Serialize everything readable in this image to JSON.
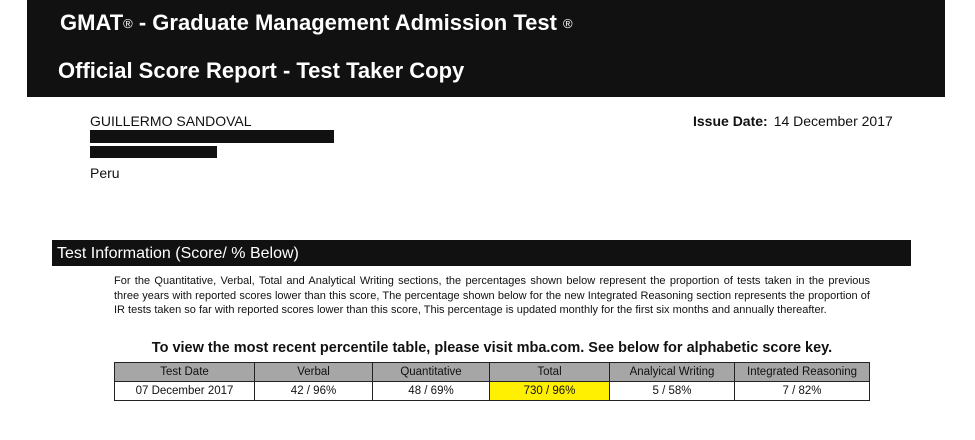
{
  "header": {
    "title_line1": "GMAT",
    "reg1": "®",
    "title_line1_rest": " - Graduate Management Admission Test ",
    "reg2": "®",
    "title_line2": "Official Score Report - Test Taker Copy"
  },
  "candidate": {
    "name": "GUILLERMO SANDOVAL",
    "country": "Peru"
  },
  "issue": {
    "label": "Issue Date:",
    "value": "14 December 2017"
  },
  "section": {
    "title": "Test Information (Score/ % Below)"
  },
  "description": "For the  Quantitative, Verbal,  Total  and Analytical Writing sections, the percentages shown  below represent the proportion of tests taken in the previous three years with reported scores lower than this score,  The percentage shown below for the new Integrated Reasoning section represents the proportion of IR tests taken so far with reported scores lower than this score, This percentage is updated monthly for the first six months and  annually thereafter.",
  "notice": "To view the most recent percentile table, please visit mba.com. See below for alphabetic score key.",
  "table": {
    "headers": [
      "Test Date",
      "Verbal",
      "Quantitative",
      "Total",
      "Analyical Writing",
      "Integrated Reasoning"
    ],
    "row": [
      "07 December 2017",
      "42  / 96%",
      "48 / 69%",
      "730 / 96%",
      "5 / 58%",
      "7 / 82%"
    ],
    "highlight_color": "#ffef00"
  }
}
